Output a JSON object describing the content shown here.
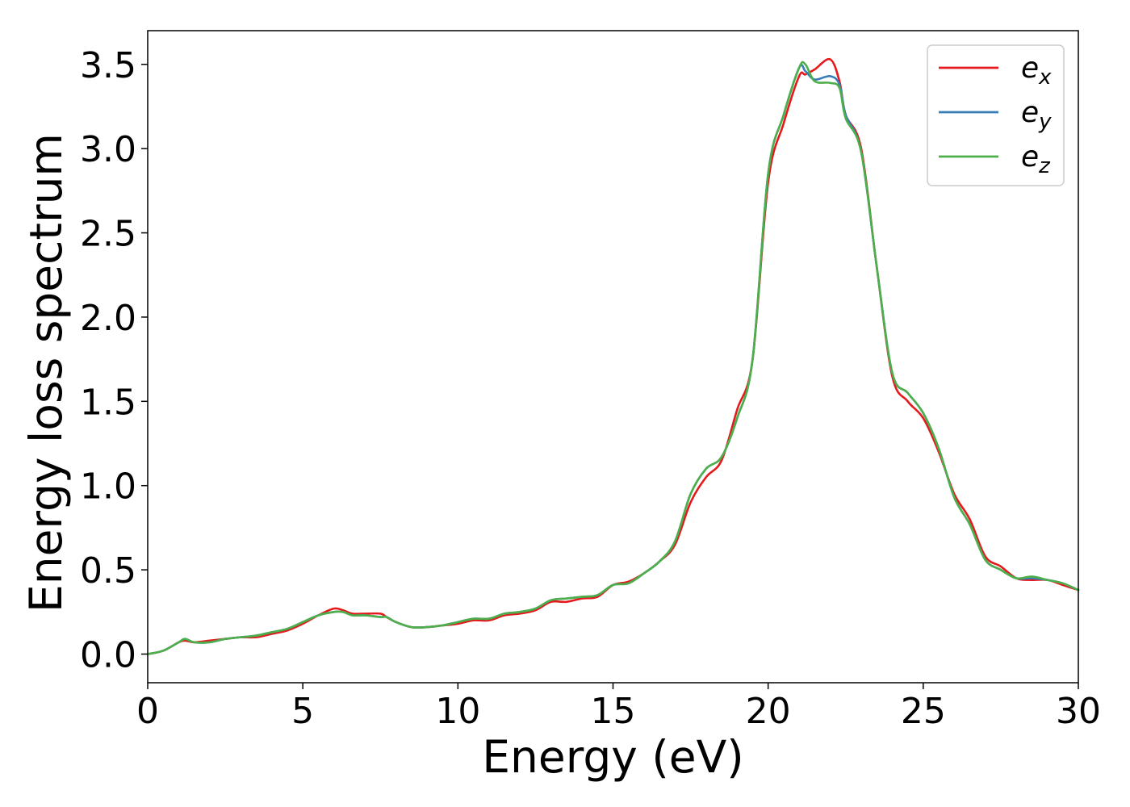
{
  "chart_data": {
    "type": "line",
    "title": "",
    "xlabel": "Energy (eV)",
    "ylabel": "Energy loss spectrum",
    "xlim": [
      0,
      30
    ],
    "ylim": [
      -0.17,
      3.7
    ],
    "xticks": [
      0,
      5,
      10,
      15,
      20,
      25,
      30
    ],
    "xtick_labels": [
      "0",
      "5",
      "10",
      "15",
      "20",
      "25",
      "30"
    ],
    "yticks": [
      0.0,
      0.5,
      1.0,
      1.5,
      2.0,
      2.5,
      3.0,
      3.5
    ],
    "ytick_labels": [
      "0.0",
      "0.5",
      "1.0",
      "1.5",
      "2.0",
      "2.5",
      "3.0",
      "3.5"
    ],
    "grid": false,
    "legend": "top-right",
    "series": [
      {
        "name": "e_x",
        "legend_base": "e",
        "legend_sub": "x",
        "color": "#e41a1c",
        "x": [
          0,
          0.5,
          1.0,
          1.2,
          1.5,
          2.0,
          2.5,
          3.0,
          3.5,
          4.0,
          4.5,
          5.0,
          5.5,
          6.0,
          6.3,
          6.6,
          7.0,
          7.5,
          7.7,
          8.0,
          8.5,
          9.0,
          9.5,
          10.0,
          10.5,
          11.0,
          11.5,
          12.0,
          12.5,
          13.0,
          13.5,
          14.0,
          14.5,
          15.0,
          15.5,
          16.0,
          16.5,
          17.0,
          17.5,
          18.0,
          18.5,
          19.0,
          19.5,
          20.0,
          20.5,
          21.0,
          21.2,
          21.5,
          22.0,
          22.3,
          22.5,
          23.0,
          23.5,
          24.0,
          24.5,
          25.0,
          25.5,
          26.0,
          26.5,
          27.0,
          27.5,
          28.0,
          28.5,
          29.0,
          29.5,
          30.0
        ],
        "y": [
          0.0,
          0.02,
          0.07,
          0.08,
          0.07,
          0.08,
          0.09,
          0.1,
          0.1,
          0.12,
          0.14,
          0.18,
          0.23,
          0.27,
          0.26,
          0.24,
          0.24,
          0.24,
          0.22,
          0.19,
          0.16,
          0.16,
          0.17,
          0.18,
          0.2,
          0.2,
          0.23,
          0.24,
          0.26,
          0.31,
          0.31,
          0.33,
          0.34,
          0.41,
          0.43,
          0.48,
          0.55,
          0.65,
          0.9,
          1.05,
          1.15,
          1.45,
          1.75,
          2.8,
          3.15,
          3.43,
          3.44,
          3.47,
          3.53,
          3.4,
          3.2,
          3.0,
          2.3,
          1.65,
          1.5,
          1.4,
          1.2,
          0.95,
          0.8,
          0.58,
          0.52,
          0.45,
          0.44,
          0.44,
          0.41,
          0.38
        ]
      },
      {
        "name": "e_y",
        "legend_base": "e",
        "legend_sub": "y",
        "color": "#377eb8",
        "x": [
          0,
          0.5,
          1.0,
          1.2,
          1.5,
          2.0,
          2.5,
          3.0,
          3.5,
          4.0,
          4.5,
          5.0,
          5.5,
          6.0,
          6.3,
          6.6,
          7.0,
          7.5,
          7.7,
          8.0,
          8.5,
          9.0,
          9.5,
          10.0,
          10.5,
          11.0,
          11.5,
          12.0,
          12.5,
          13.0,
          13.5,
          14.0,
          14.5,
          15.0,
          15.5,
          16.0,
          16.5,
          17.0,
          17.5,
          18.0,
          18.5,
          19.0,
          19.5,
          20.0,
          20.5,
          21.0,
          21.2,
          21.5,
          22.0,
          22.3,
          22.5,
          23.0,
          23.5,
          24.0,
          24.5,
          25.0,
          25.5,
          26.0,
          26.5,
          27.0,
          27.5,
          28.0,
          28.5,
          29.0,
          29.5,
          30.0
        ],
        "y": [
          0.0,
          0.02,
          0.07,
          0.09,
          0.07,
          0.07,
          0.09,
          0.1,
          0.11,
          0.13,
          0.15,
          0.19,
          0.23,
          0.25,
          0.25,
          0.23,
          0.23,
          0.22,
          0.22,
          0.19,
          0.16,
          0.16,
          0.17,
          0.19,
          0.21,
          0.21,
          0.24,
          0.25,
          0.27,
          0.32,
          0.33,
          0.34,
          0.35,
          0.41,
          0.42,
          0.48,
          0.55,
          0.67,
          0.95,
          1.1,
          1.17,
          1.4,
          1.75,
          2.85,
          3.2,
          3.48,
          3.46,
          3.41,
          3.43,
          3.38,
          3.2,
          2.98,
          2.3,
          1.67,
          1.55,
          1.43,
          1.22,
          0.93,
          0.77,
          0.56,
          0.5,
          0.45,
          0.45,
          0.44,
          0.42,
          0.38
        ]
      },
      {
        "name": "e_z",
        "legend_base": "e",
        "legend_sub": "z",
        "color": "#4daf4a",
        "x": [
          0,
          0.5,
          1.0,
          1.2,
          1.5,
          2.0,
          2.5,
          3.0,
          3.5,
          4.0,
          4.5,
          5.0,
          5.5,
          6.0,
          6.3,
          6.6,
          7.0,
          7.5,
          7.7,
          8.0,
          8.5,
          9.0,
          9.5,
          10.0,
          10.5,
          11.0,
          11.5,
          12.0,
          12.5,
          13.0,
          13.5,
          14.0,
          14.5,
          15.0,
          15.5,
          16.0,
          16.5,
          17.0,
          17.5,
          18.0,
          18.5,
          19.0,
          19.5,
          20.0,
          20.5,
          21.0,
          21.2,
          21.5,
          22.0,
          22.3,
          22.5,
          23.0,
          23.5,
          24.0,
          24.5,
          25.0,
          25.5,
          26.0,
          26.5,
          27.0,
          27.5,
          28.0,
          28.5,
          29.0,
          29.5,
          30.0
        ],
        "y": [
          0.0,
          0.02,
          0.07,
          0.09,
          0.07,
          0.07,
          0.09,
          0.1,
          0.11,
          0.13,
          0.15,
          0.19,
          0.23,
          0.25,
          0.25,
          0.23,
          0.23,
          0.22,
          0.22,
          0.19,
          0.16,
          0.16,
          0.17,
          0.19,
          0.21,
          0.21,
          0.24,
          0.25,
          0.27,
          0.32,
          0.33,
          0.34,
          0.35,
          0.41,
          0.42,
          0.48,
          0.55,
          0.67,
          0.95,
          1.1,
          1.17,
          1.4,
          1.75,
          2.85,
          3.2,
          3.48,
          3.5,
          3.4,
          3.39,
          3.36,
          3.18,
          2.98,
          2.3,
          1.67,
          1.55,
          1.43,
          1.22,
          0.93,
          0.77,
          0.56,
          0.5,
          0.45,
          0.46,
          0.44,
          0.42,
          0.38
        ]
      }
    ]
  }
}
